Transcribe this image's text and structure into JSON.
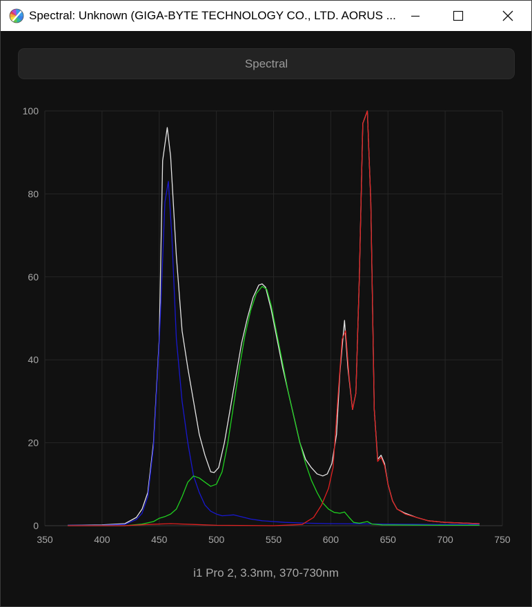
{
  "window": {
    "title": "Spectral: Unknown (GIGA-BYTE TECHNOLOGY CO., LTD. AORUS ...",
    "app_icon": "color-wheel-icon",
    "controls": {
      "minimize": "minimize-icon",
      "maximize": "maximize-icon",
      "close": "close-icon"
    }
  },
  "mode_button": {
    "label": "Spectral"
  },
  "caption": "i1 Pro 2, 3.3nm, 370-730nm",
  "colors": {
    "background": "#111111",
    "grid": "#262626",
    "axis_text": "#a8a8a8",
    "white": "#e6e6e6",
    "red": "#e02020",
    "green": "#20d020",
    "blue": "#1818d0"
  },
  "chart_data": {
    "type": "line",
    "xlim": [
      350,
      750
    ],
    "ylim": [
      0,
      100
    ],
    "x_ticks": [
      350,
      400,
      450,
      500,
      550,
      600,
      650,
      700,
      750
    ],
    "y_ticks": [
      0,
      20,
      40,
      60,
      80,
      100
    ],
    "grid": true,
    "series": [
      {
        "color": "white",
        "points": [
          [
            370,
            0.1
          ],
          [
            400,
            0.2
          ],
          [
            420,
            0.5
          ],
          [
            430,
            2
          ],
          [
            435,
            4
          ],
          [
            440,
            8
          ],
          [
            445,
            20
          ],
          [
            450,
            45
          ],
          [
            453,
            88
          ],
          [
            457,
            96
          ],
          [
            460,
            89
          ],
          [
            465,
            65
          ],
          [
            470,
            47
          ],
          [
            475,
            38
          ],
          [
            480,
            30
          ],
          [
            485,
            22
          ],
          [
            490,
            17
          ],
          [
            495,
            13
          ],
          [
            498,
            12.8
          ],
          [
            502,
            14
          ],
          [
            507,
            20
          ],
          [
            512,
            28
          ],
          [
            517,
            36
          ],
          [
            522,
            44
          ],
          [
            527,
            50
          ],
          [
            532,
            55
          ],
          [
            537,
            58
          ],
          [
            540,
            58.3
          ],
          [
            543,
            57.5
          ],
          [
            548,
            52
          ],
          [
            553,
            45
          ],
          [
            558,
            38
          ],
          [
            563,
            32
          ],
          [
            568,
            26
          ],
          [
            573,
            20
          ],
          [
            578,
            16
          ],
          [
            583,
            14
          ],
          [
            588,
            12.5
          ],
          [
            593,
            12
          ],
          [
            597,
            12.5
          ],
          [
            601,
            15
          ],
          [
            605,
            22
          ],
          [
            608,
            37
          ],
          [
            612,
            49.5
          ],
          [
            615,
            38
          ],
          [
            619,
            28
          ],
          [
            622,
            32
          ],
          [
            625,
            60
          ],
          [
            628,
            97
          ],
          [
            632,
            100
          ],
          [
            635,
            78
          ],
          [
            638,
            28
          ],
          [
            641,
            16
          ],
          [
            644,
            17
          ],
          [
            647,
            15
          ],
          [
            650,
            10
          ],
          [
            654,
            6
          ],
          [
            658,
            4
          ],
          [
            665,
            3
          ],
          [
            675,
            2
          ],
          [
            685,
            1.2
          ],
          [
            700,
            0.8
          ],
          [
            730,
            0.5
          ]
        ]
      },
      {
        "color": "blue",
        "points": [
          [
            370,
            0.1
          ],
          [
            400,
            0.1
          ],
          [
            420,
            0.3
          ],
          [
            430,
            1.5
          ],
          [
            435,
            3
          ],
          [
            440,
            7
          ],
          [
            445,
            19
          ],
          [
            450,
            44
          ],
          [
            455,
            78
          ],
          [
            458,
            83
          ],
          [
            461,
            70
          ],
          [
            465,
            45
          ],
          [
            470,
            30
          ],
          [
            475,
            20
          ],
          [
            480,
            12
          ],
          [
            485,
            8
          ],
          [
            490,
            5
          ],
          [
            495,
            3.5
          ],
          [
            500,
            2.8
          ],
          [
            505,
            2.4
          ],
          [
            510,
            2.5
          ],
          [
            515,
            2.6
          ],
          [
            520,
            2.3
          ],
          [
            530,
            1.6
          ],
          [
            540,
            1.2
          ],
          [
            560,
            0.8
          ],
          [
            580,
            0.6
          ],
          [
            600,
            0.5
          ],
          [
            650,
            0.4
          ],
          [
            700,
            0.3
          ],
          [
            730,
            0.3
          ]
        ]
      },
      {
        "color": "green",
        "points": [
          [
            370,
            0
          ],
          [
            420,
            0
          ],
          [
            435,
            0.4
          ],
          [
            445,
            1
          ],
          [
            450,
            1.8
          ],
          [
            455,
            2.2
          ],
          [
            460,
            2.8
          ],
          [
            465,
            4
          ],
          [
            470,
            7
          ],
          [
            475,
            10.5
          ],
          [
            480,
            12
          ],
          [
            485,
            11.5
          ],
          [
            490,
            10.5
          ],
          [
            495,
            9.5
          ],
          [
            500,
            10
          ],
          [
            505,
            13
          ],
          [
            510,
            20
          ],
          [
            515,
            29
          ],
          [
            520,
            38
          ],
          [
            525,
            46
          ],
          [
            530,
            52
          ],
          [
            535,
            56
          ],
          [
            540,
            57.7
          ],
          [
            544,
            57
          ],
          [
            548,
            53
          ],
          [
            553,
            46
          ],
          [
            558,
            39
          ],
          [
            563,
            32
          ],
          [
            568,
            26
          ],
          [
            573,
            20
          ],
          [
            578,
            15
          ],
          [
            583,
            11
          ],
          [
            588,
            8
          ],
          [
            593,
            5.5
          ],
          [
            598,
            4
          ],
          [
            603,
            3.2
          ],
          [
            608,
            3
          ],
          [
            612,
            3.3
          ],
          [
            616,
            2
          ],
          [
            620,
            0.8
          ],
          [
            625,
            0.6
          ],
          [
            632,
            1
          ],
          [
            636,
            0.4
          ],
          [
            645,
            0.2
          ],
          [
            700,
            0.1
          ],
          [
            730,
            0.1
          ]
        ]
      },
      {
        "color": "red",
        "points": [
          [
            370,
            0
          ],
          [
            420,
            0
          ],
          [
            440,
            0.3
          ],
          [
            460,
            0.5
          ],
          [
            480,
            0.3
          ],
          [
            500,
            0.1
          ],
          [
            550,
            0
          ],
          [
            575,
            0.3
          ],
          [
            585,
            2
          ],
          [
            592,
            5
          ],
          [
            598,
            9
          ],
          [
            602,
            14
          ],
          [
            606,
            30
          ],
          [
            610,
            45
          ],
          [
            613,
            47
          ],
          [
            616,
            36
          ],
          [
            619,
            28
          ],
          [
            622,
            32
          ],
          [
            625,
            60
          ],
          [
            628,
            97
          ],
          [
            632,
            100
          ],
          [
            635,
            78
          ],
          [
            638,
            28
          ],
          [
            641,
            15.5
          ],
          [
            644,
            16.5
          ],
          [
            647,
            14.5
          ],
          [
            650,
            10
          ],
          [
            654,
            6
          ],
          [
            658,
            4
          ],
          [
            665,
            2.8
          ],
          [
            675,
            2
          ],
          [
            685,
            1.2
          ],
          [
            700,
            0.8
          ],
          [
            730,
            0.5
          ]
        ]
      }
    ]
  }
}
